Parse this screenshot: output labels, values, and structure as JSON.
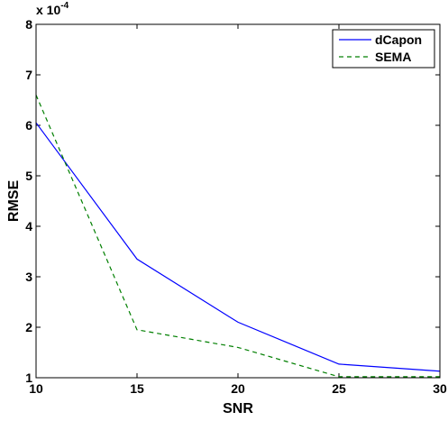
{
  "chart_data": {
    "type": "line",
    "x": [
      10,
      15,
      20,
      25,
      30
    ],
    "series": [
      {
        "name": "dCapon",
        "values": [
          6.05,
          3.35,
          2.1,
          1.27,
          1.13
        ],
        "color": "#0000ff",
        "style": "solid"
      },
      {
        "name": "SEMA",
        "values": [
          6.6,
          1.95,
          1.6,
          1.02,
          1.02
        ],
        "color": "#007f00",
        "style": "dashed"
      }
    ],
    "xlabel": "SNR",
    "ylabel": "RMSE",
    "xlim": [
      10,
      30
    ],
    "ylim": [
      1,
      8
    ],
    "xticks": [
      10,
      15,
      20,
      25,
      30
    ],
    "yticks": [
      1,
      2,
      3,
      4,
      5,
      6,
      7,
      8
    ],
    "y_multiplier_base": "x 10",
    "y_multiplier_exp": "-4",
    "grid": false,
    "legend_position": "top-right"
  }
}
